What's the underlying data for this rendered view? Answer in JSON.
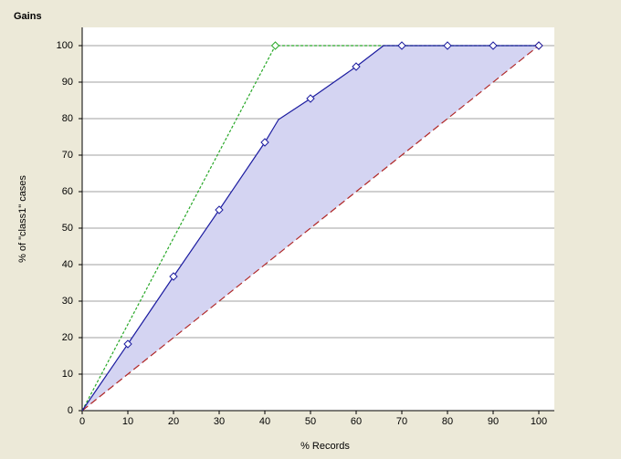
{
  "chart_data": {
    "type": "line",
    "title": "Gains",
    "x_label": "% Records",
    "y_label": "% of \"class1\" cases",
    "xlim": [
      0,
      100
    ],
    "ylim": [
      0,
      100
    ],
    "xticks": [
      0,
      10,
      20,
      30,
      40,
      50,
      60,
      70,
      80,
      90,
      100
    ],
    "yticks": [
      0,
      10,
      20,
      30,
      40,
      50,
      60,
      70,
      80,
      90,
      100
    ],
    "grid": true,
    "series": [
      {
        "color": "#1c1ca0",
        "style": "solid",
        "fill": "#d4d4f2",
        "x": [
          0,
          10,
          20,
          30,
          40,
          43,
          50,
          60,
          66,
          70,
          80,
          90,
          100
        ],
        "values": [
          0,
          18.25,
          36.75,
          55,
          73.5,
          79.75,
          85.5,
          94.25,
          100,
          100,
          100,
          100,
          100
        ]
      },
      {
        "color": "#b02828",
        "style": "dashed",
        "x": [
          0,
          100
        ],
        "values": [
          0,
          100
        ]
      },
      {
        "color": "#28a828",
        "style": "dotted",
        "x": [
          0,
          42.3,
          100
        ],
        "values": [
          0,
          100,
          100
        ]
      }
    ]
  }
}
